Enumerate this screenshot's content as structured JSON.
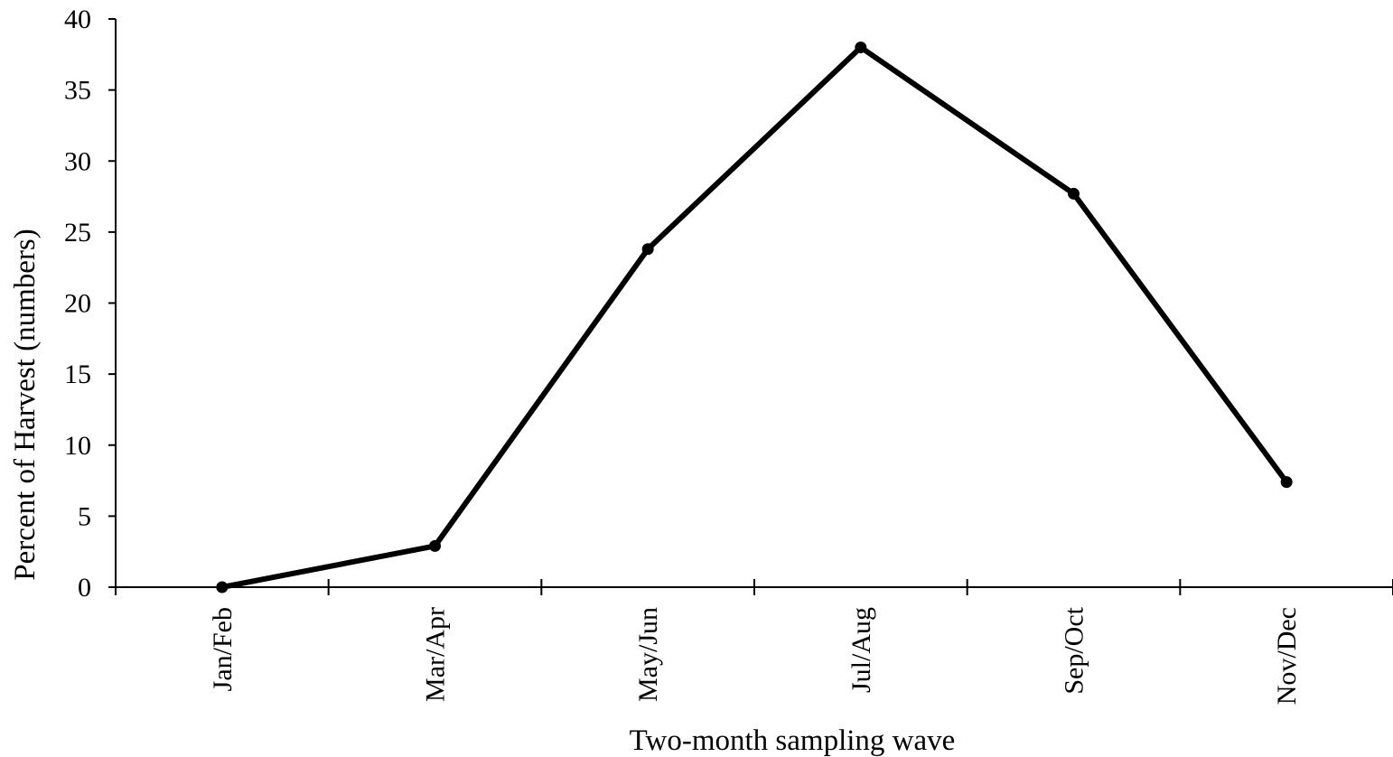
{
  "chart_data": {
    "type": "line",
    "title": "",
    "xlabel": "Two-month sampling wave",
    "ylabel": "Percent of Harvest (numbers)",
    "categories": [
      "Jan/Feb",
      "Mar/Apr",
      "May/Jun",
      "Jul/Aug",
      "Sep/Oct",
      "Nov/Dec"
    ],
    "series": [
      {
        "values": [
          0,
          2.9,
          23.8,
          38.0,
          27.7,
          7.4
        ]
      }
    ],
    "ylim": [
      0,
      40
    ],
    "yticks": [
      "0",
      "5",
      "10",
      "15",
      "20",
      "25",
      "30",
      "35",
      "40"
    ],
    "grid": false,
    "legend": "none",
    "line_color": "#000000",
    "marker": "circle"
  }
}
